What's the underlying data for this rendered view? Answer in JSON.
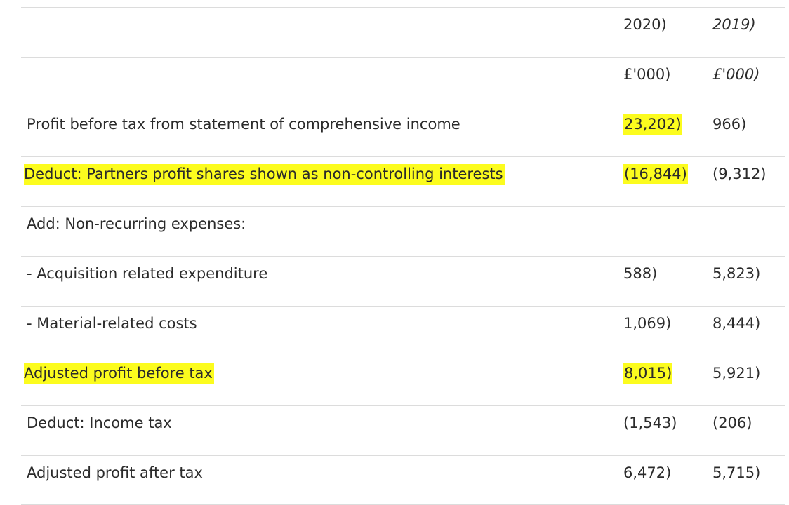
{
  "table": {
    "header": [
      {
        "label": "",
        "col2020": "2020)",
        "col2019": "2019)"
      },
      {
        "label": "",
        "col2020": "£'000)",
        "col2019": "£'000)"
      }
    ],
    "rows": [
      {
        "label": "Profit before tax from statement of comprehensive income",
        "col2020": "23,202)",
        "col2019": "966)"
      },
      {
        "label": "Deduct: Partners profit shares shown as non-controlling interests",
        "col2020": "(16,844)",
        "col2019": "(9,312)"
      },
      {
        "label": "Add: Non-recurring expenses:",
        "col2020": "",
        "col2019": ""
      },
      {
        "label": " - Acquisition related expenditure",
        "col2020": "588)",
        "col2019": "5,823)"
      },
      {
        "label": " - Material-related costs",
        "col2020": "1,069)",
        "col2019": "8,444)"
      },
      {
        "label": "Adjusted profit before tax",
        "col2020": "8,015)",
        "col2019": "5,921)"
      },
      {
        "label": "Deduct: Income tax",
        "col2020": "(1,543)",
        "col2019": "(206)"
      },
      {
        "label": "Adjusted profit after tax",
        "col2020": "6,472)",
        "col2019": "5,715)"
      }
    ]
  },
  "highlight_color": "#fcfc1e"
}
